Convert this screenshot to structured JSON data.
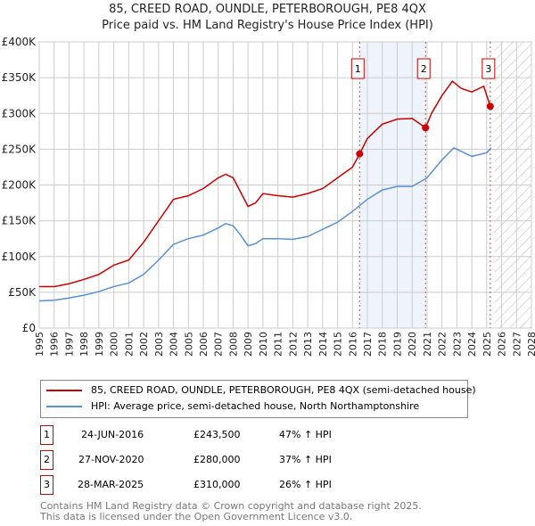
{
  "chart_data": {
    "type": "line",
    "title": "85, CREED ROAD, OUNDLE, PETERBOROUGH, PE8 4QX",
    "subtitle": "Price paid vs. HM Land Registry's House Price Index (HPI)",
    "xlim": [
      1995,
      2028
    ],
    "ylim": [
      0,
      400000
    ],
    "x_ticks": [
      "1995",
      "1996",
      "1997",
      "1998",
      "1999",
      "2000",
      "2001",
      "2002",
      "2003",
      "2004",
      "2005",
      "2006",
      "2007",
      "2008",
      "2009",
      "2010",
      "2011",
      "2012",
      "2013",
      "2014",
      "2015",
      "2016",
      "2017",
      "2018",
      "2019",
      "2020",
      "2021",
      "2022",
      "2023",
      "2024",
      "2025",
      "2026",
      "2027",
      "2028"
    ],
    "y_ticks": [
      {
        "v": 0,
        "label": "£0"
      },
      {
        "v": 50000,
        "label": "£50K"
      },
      {
        "v": 100000,
        "label": "£100K"
      },
      {
        "v": 150000,
        "label": "£150K"
      },
      {
        "v": 200000,
        "label": "£200K"
      },
      {
        "v": 250000,
        "label": "£250K"
      },
      {
        "v": 300000,
        "label": "£300K"
      },
      {
        "v": 350000,
        "label": "£350K"
      },
      {
        "v": 400000,
        "label": "£400K"
      }
    ],
    "grid": true,
    "series": [
      {
        "name": "85, CREED ROAD, OUNDLE, PETERBOROUGH, PE8 4QX (semi-detached house)",
        "color": "#cc0000",
        "x": [
          1995,
          1996,
          1997,
          1998,
          1999,
          2000,
          2001,
          2002,
          2003,
          2004,
          2005,
          2006,
          2007,
          2007.5,
          2008,
          2008.5,
          2009,
          2009.5,
          2010,
          2011,
          2012,
          2013,
          2014,
          2015,
          2016,
          2016.48,
          2017,
          2018,
          2019,
          2020,
          2020.9,
          2021.3,
          2022,
          2022.7,
          2023.3,
          2024,
          2024.8,
          2025.24,
          2025.35
        ],
        "y": [
          58000,
          58000,
          62000,
          68000,
          75000,
          88000,
          95000,
          120000,
          150000,
          180000,
          185000,
          195000,
          210000,
          215000,
          210000,
          190000,
          170000,
          175000,
          188000,
          185000,
          183000,
          188000,
          195000,
          210000,
          225000,
          243500,
          265000,
          285000,
          292000,
          293000,
          280000,
          300000,
          325000,
          345000,
          335000,
          330000,
          338000,
          310000,
          305000
        ]
      },
      {
        "name": "HPI: Average price, semi-detached house, North Northamptonshire",
        "color": "#5b8fd4",
        "x": [
          1995,
          1996,
          1997,
          1998,
          1999,
          2000,
          2001,
          2002,
          2003,
          2004,
          2005,
          2006,
          2007,
          2007.5,
          2008,
          2008.5,
          2009,
          2009.5,
          2010,
          2011,
          2012,
          2013,
          2014,
          2015,
          2016,
          2017,
          2018,
          2019,
          2020,
          2021,
          2022,
          2022.8,
          2023.5,
          2024,
          2025,
          2025.3
        ],
        "y": [
          38000,
          39000,
          42000,
          46000,
          51000,
          58000,
          63000,
          75000,
          95000,
          117000,
          125000,
          130000,
          140000,
          146000,
          143000,
          130000,
          115000,
          118000,
          125000,
          125000,
          124000,
          128000,
          138000,
          148000,
          163000,
          180000,
          193000,
          198000,
          198000,
          210000,
          235000,
          252000,
          245000,
          240000,
          245000,
          252000
        ]
      }
    ],
    "sales": [
      {
        "id": "1",
        "x": 2016.48,
        "date": "24-JUN-2016",
        "price": "£243,500",
        "value": 243500,
        "hpi": "47% ↑ HPI"
      },
      {
        "id": "2",
        "x": 2020.9,
        "date": "27-NOV-2020",
        "price": "£280,000",
        "value": 280000,
        "hpi": "37% ↑ HPI"
      },
      {
        "id": "3",
        "x": 2025.24,
        "date": "28-MAR-2025",
        "price": "£310,000",
        "value": 310000,
        "hpi": "26% ↑ HPI"
      }
    ],
    "forecast_start": 2025.5,
    "legend_position": "below"
  },
  "footer": [
    "Contains HM Land Registry data © Crown copyright and database right 2025.",
    "This data is licensed under the Open Government Licence v3.0."
  ]
}
